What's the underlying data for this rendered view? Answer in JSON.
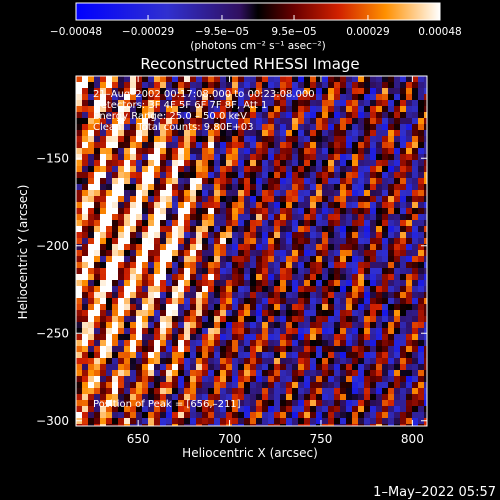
{
  "chart_data": {
    "type": "heatmap",
    "title": "Reconstructed RHESSI Image",
    "xlabel": "Heliocentric X (arcsec)",
    "ylabel": "Heliocentric Y (arcsec)",
    "xlim": [
      616,
      808
    ],
    "ylim": [
      -303,
      -103
    ],
    "x_ticks": [
      650,
      700,
      750,
      800
    ],
    "x_tick_labels": [
      "650",
      "700",
      "750",
      "800"
    ],
    "y_ticks": [
      -150,
      -200,
      -250,
      -300
    ],
    "y_tick_labels": [
      "−150",
      "−200",
      "−250",
      "−300"
    ],
    "colorbar": {
      "range": [
        -0.00048,
        0.00048
      ],
      "ticks": [
        -0.00048,
        -0.00029,
        -9.5e-05,
        9.5e-05,
        0.00029,
        0.00048
      ],
      "tick_labels": [
        "−0.00048",
        "−0.00029",
        "−9.5e−05",
        "9.5e−05",
        "0.00029",
        "0.00048"
      ],
      "units": "(photons cm⁻² s⁻¹ asec⁻²)"
    },
    "peak": [
      656,
      -211
    ],
    "annotations": [
      "21–Aug–2002 00:17:08.000 to 00:23:08.000",
      "Detectors: 3F 4F 5F 6F 7F 8F, Att 1",
      "Energy Range: 25.0 – 50.0 keV",
      "Clean     Total counts: 9.80E+03"
    ],
    "peak_label": "Position of Peak = [656,–211]"
  },
  "footer": {
    "timestamp": "1–May–2022 05:57"
  },
  "colors": {
    "background": "#000000",
    "text": "#ffffff"
  }
}
